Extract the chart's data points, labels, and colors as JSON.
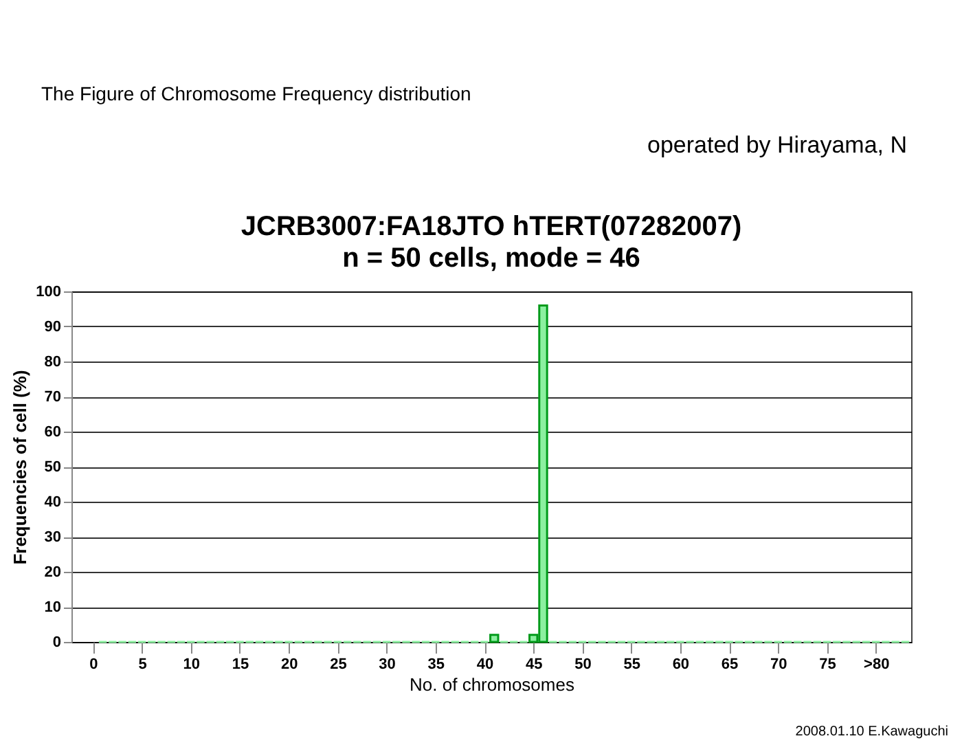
{
  "chart_data": {
    "type": "bar",
    "title": "JCRB3007:FA18JTO hTERT(07282007)",
    "subtitle": "n = 50 cells, mode = 46",
    "xlabel": "No. of chromosomes",
    "ylabel": "Frequencies of cell (%)",
    "annotations": [
      "The Figure of Chromosome Frequency distribution",
      "operated by Hirayama, N",
      "2008.01.10 E.Kawaguchi"
    ],
    "x": [
      1,
      2,
      3,
      4,
      5,
      6,
      7,
      8,
      9,
      10,
      11,
      12,
      13,
      14,
      15,
      16,
      17,
      18,
      19,
      20,
      21,
      22,
      23,
      24,
      25,
      26,
      27,
      28,
      29,
      30,
      31,
      32,
      33,
      34,
      35,
      36,
      37,
      38,
      39,
      40,
      41,
      42,
      43,
      44,
      45,
      46,
      47,
      48,
      49,
      50,
      51,
      52,
      53,
      54,
      55,
      56,
      57,
      58,
      59,
      60,
      61,
      62,
      63,
      64,
      65,
      66,
      67,
      68,
      69,
      70,
      71,
      72,
      73,
      74,
      75,
      76,
      77,
      78,
      79,
      80,
      81,
      82,
      83
    ],
    "values": [
      0,
      0,
      0,
      0,
      0,
      0,
      0,
      0,
      0,
      0,
      0,
      0,
      0,
      0,
      0,
      0,
      0,
      0,
      0,
      0,
      0,
      0,
      0,
      0,
      0,
      0,
      0,
      0,
      0,
      0,
      0,
      0,
      0,
      0,
      0,
      0,
      0,
      0,
      0,
      0,
      2,
      0,
      0,
      0,
      2,
      96,
      0,
      0,
      0,
      0,
      0,
      0,
      0,
      0,
      0,
      0,
      0,
      0,
      0,
      0,
      0,
      0,
      0,
      0,
      0,
      0,
      0,
      0,
      0,
      0,
      0,
      0,
      0,
      0,
      0,
      0,
      0,
      0,
      0,
      0,
      0,
      0,
      0
    ],
    "color": "#8cf0a0",
    "xlim": [
      -2.2,
      83.6
    ],
    "xticks": [
      0,
      5,
      10,
      15,
      20,
      25,
      30,
      35,
      40,
      45,
      50,
      55,
      60,
      65,
      70,
      75,
      {
        "value": 80,
        "label": ">80"
      }
    ],
    "ylim": [
      0,
      100
    ],
    "yticks": [
      0,
      10,
      20,
      30,
      40,
      50,
      60,
      70,
      80,
      90,
      100
    ],
    "grid": "y"
  }
}
